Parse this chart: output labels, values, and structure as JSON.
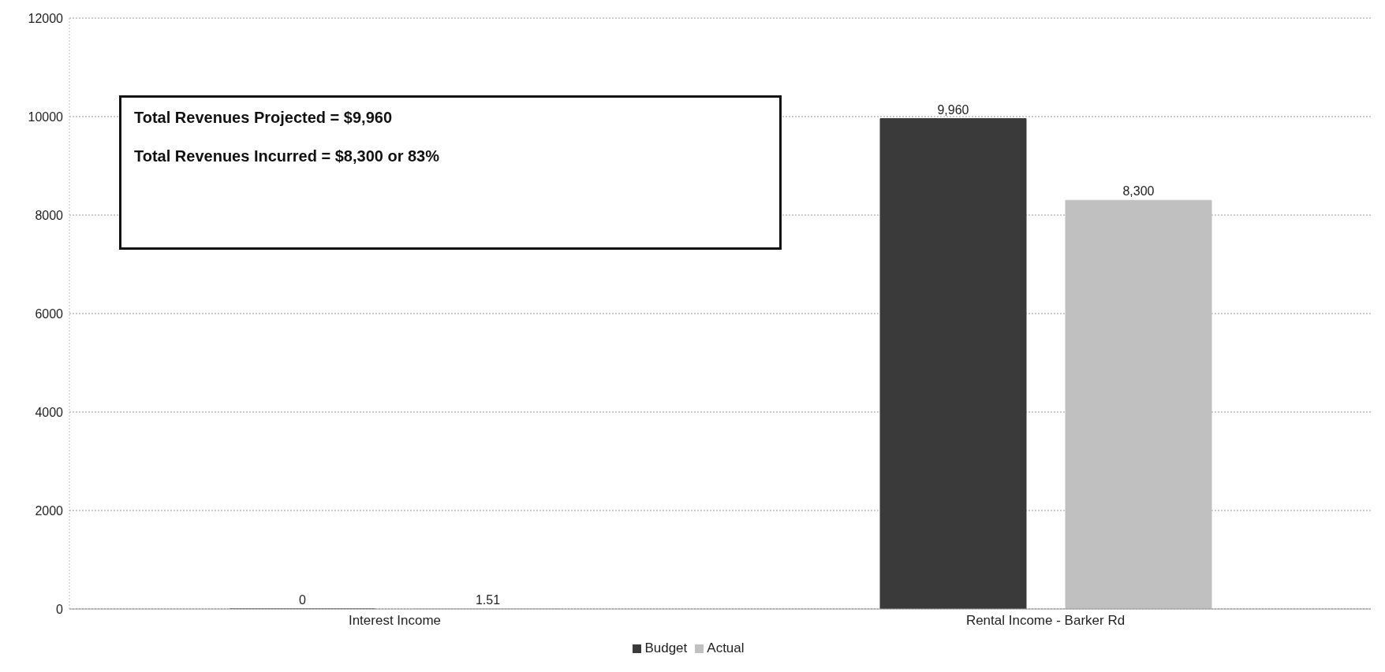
{
  "chart_data": {
    "type": "bar",
    "categories": [
      "Interest Income",
      "Rental Income - Barker Rd"
    ],
    "series": [
      {
        "name": "Budget",
        "color": "#3a3a3a",
        "values": [
          0,
          9960
        ],
        "value_labels": [
          "0",
          "9,960"
        ]
      },
      {
        "name": "Actual",
        "color": "#c0c0c0",
        "values": [
          1.51,
          8300
        ],
        "value_labels": [
          "1.51",
          "8,300"
        ]
      }
    ],
    "ylim": [
      0,
      12000
    ],
    "yticks": [
      0,
      2000,
      4000,
      6000,
      8000,
      10000,
      12000
    ],
    "grid": "y",
    "legend": "bottom",
    "annotations": [
      "Total Revenues Projected = $9,960",
      "Total Revenues Incurred = $8,300 or 83%"
    ]
  }
}
